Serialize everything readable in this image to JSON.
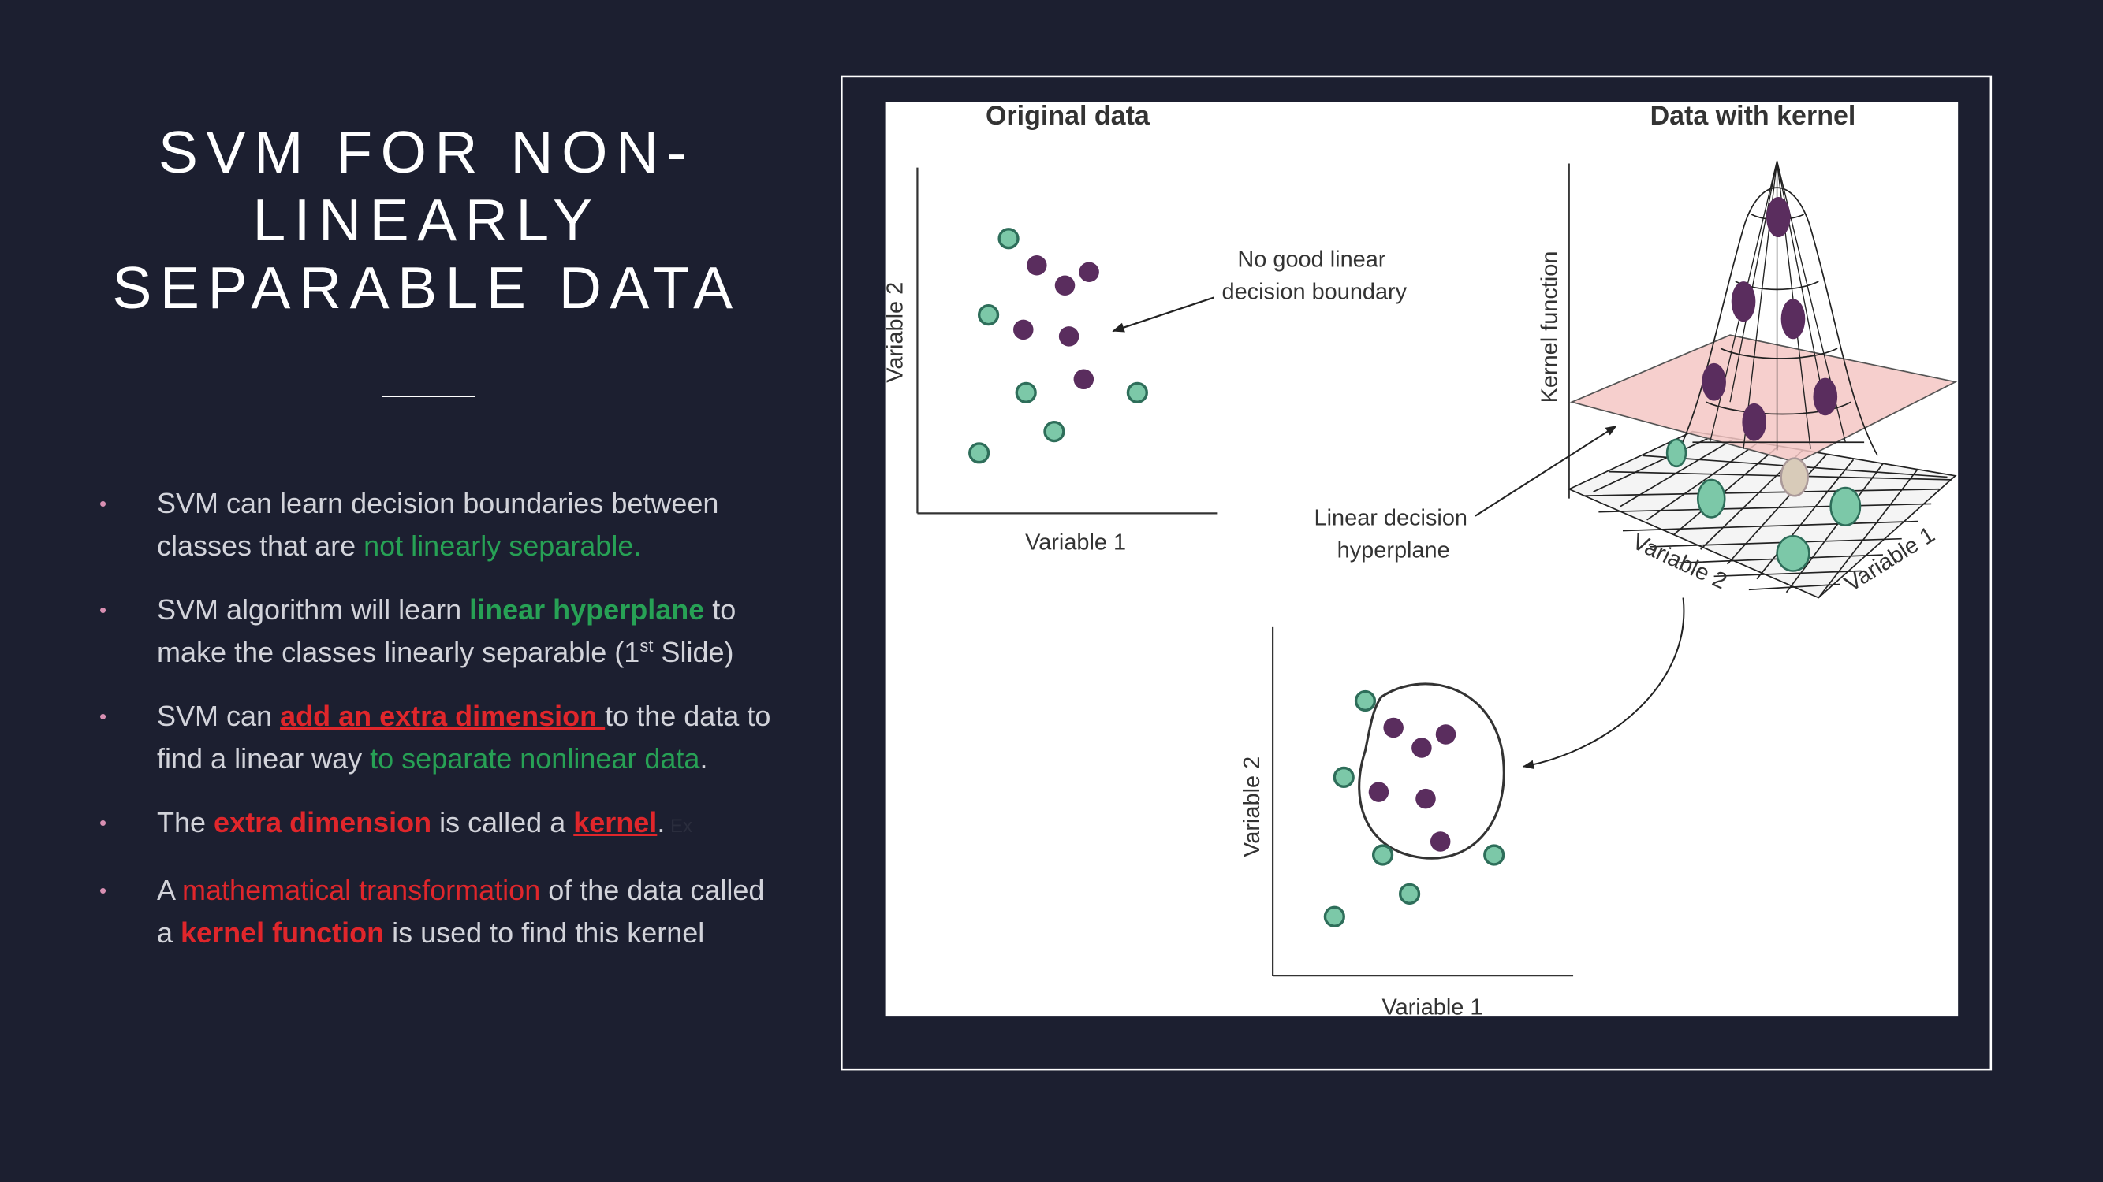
{
  "slide": {
    "title": "SVM FOR NON-LINEARLY SEPARABLE DATA",
    "bullets": [
      {
        "segments": [
          {
            "text": "SVM can learn decision boundaries between classes that are ",
            "style": "plain"
          },
          {
            "text": "not linearly separable.",
            "style": "green"
          }
        ]
      },
      {
        "segments": [
          {
            "text": "SVM algorithm will learn ",
            "style": "plain"
          },
          {
            "text": "linear hyperplane",
            "style": "green-bold"
          },
          {
            "text": " to make the classes linearly separable (1",
            "style": "plain"
          },
          {
            "text": "st",
            "style": "sup"
          },
          {
            "text": " Slide)",
            "style": "plain"
          }
        ]
      },
      {
        "segments": [
          {
            "text": "SVM can ",
            "style": "plain"
          },
          {
            "text": "add an extra dimension ",
            "style": "red-bold-underline"
          },
          {
            "text": "to the data to find a linear way ",
            "style": "plain"
          },
          {
            "text": "to separate nonlinear data",
            "style": "green"
          },
          {
            "text": ".",
            "style": "plain"
          }
        ]
      },
      {
        "segments": [
          {
            "text": "The ",
            "style": "plain"
          },
          {
            "text": "extra dimension",
            "style": "red-bold"
          },
          {
            "text": " is called a ",
            "style": "plain"
          },
          {
            "text": "kernel",
            "style": "red-bold-underline"
          },
          {
            "text": ".",
            "style": "plain"
          },
          {
            "text": " Ex",
            "style": "faint"
          }
        ]
      },
      {
        "segments": [
          {
            "text": "A ",
            "style": "plain"
          },
          {
            "text": "mathematical transformation",
            "style": "red"
          },
          {
            "text": " of the data called a ",
            "style": "plain"
          },
          {
            "text": "kernel function",
            "style": "red-bold"
          },
          {
            "text": " is used to find this kernel",
            "style": "plain"
          }
        ]
      }
    ]
  },
  "figure": {
    "left_title": "Original data",
    "right_title": "Data with kernel",
    "left_y_label": "Variable 2",
    "left_x_label": "Variable 1",
    "no_boundary_note": [
      "No good linear",
      "decision boundary"
    ],
    "kernel_axis_label": "Kernel function",
    "hyperplane_note": [
      "Linear decision",
      "hyperplane"
    ],
    "mesh_label_a": "Variable 2",
    "mesh_label_b": "Variable 1",
    "bottom_y_label": "Variable 2",
    "bottom_x_label": "Variable 1"
  }
}
